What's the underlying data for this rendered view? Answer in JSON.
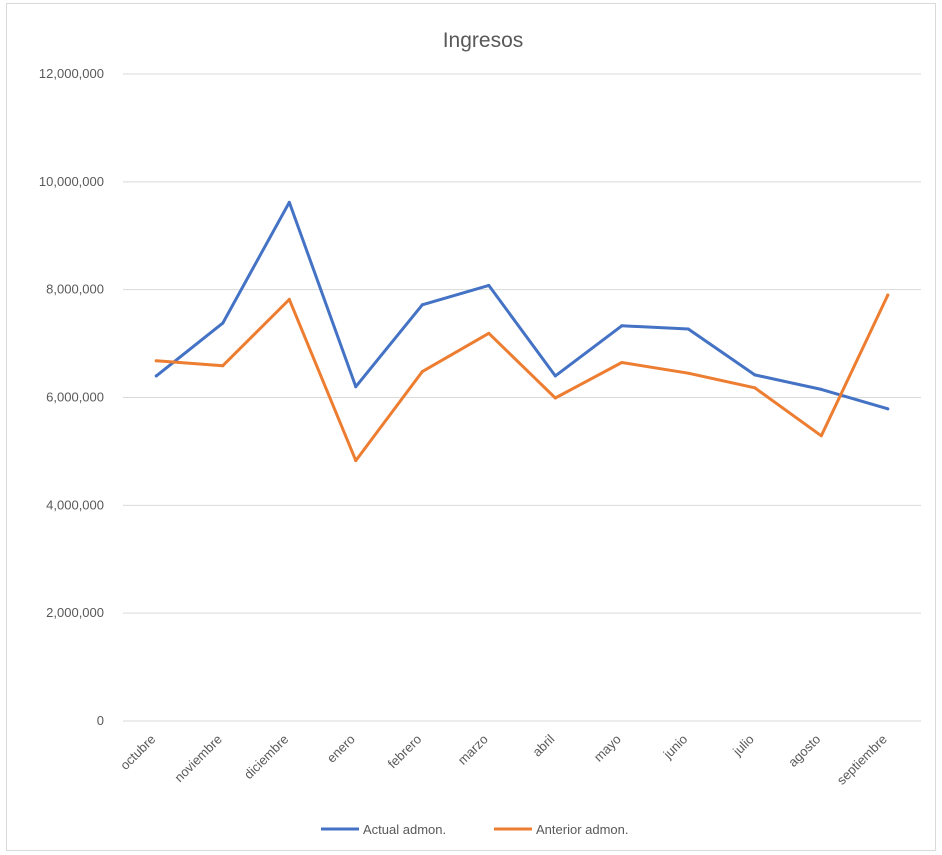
{
  "chart_data": {
    "type": "line",
    "title": "Ingresos",
    "xlabel": "",
    "ylabel": "",
    "categories": [
      "octubre",
      "noviembre",
      "diciembre",
      "enero",
      "febrero",
      "marzo",
      "abril",
      "mayo",
      "junio",
      "julio",
      "agosto",
      "septiembre"
    ],
    "ylim": [
      0,
      12000000
    ],
    "yticks": [
      0,
      2000000,
      4000000,
      6000000,
      8000000,
      10000000,
      12000000
    ],
    "ytick_labels": [
      "0",
      "2,000,000",
      "4,000,000",
      "6,000,000",
      "8,000,000",
      "10,000,000",
      "12,000,000"
    ],
    "grid": true,
    "legend_position": "bottom",
    "series": [
      {
        "name": "Actual admon.",
        "color": "#4472C4",
        "values": [
          6400000,
          7380000,
          9620000,
          6200000,
          7720000,
          8080000,
          6400000,
          7330000,
          7270000,
          6420000,
          6150000,
          5790000
        ]
      },
      {
        "name": "Anterior admon.",
        "color": "#ED7D31",
        "values": [
          6680000,
          6590000,
          7820000,
          4830000,
          6480000,
          7190000,
          5990000,
          6650000,
          6450000,
          6180000,
          5290000,
          7900000
        ]
      }
    ]
  }
}
